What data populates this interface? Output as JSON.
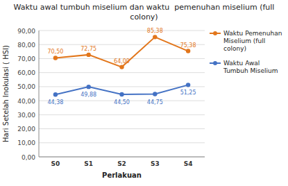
{
  "chart_data": {
    "type": "line",
    "title": "Waktu awal tumbuh miselium dan waktu  pemenuhan miselium (full colony)",
    "x_label": "Perlakuan",
    "y_label": "Hari Setelah Inokulasi ( HSI)",
    "categories": [
      "S0",
      "S1",
      "S2",
      "S3",
      "S4"
    ],
    "series": [
      {
        "name": "Waktu Pemenuhan\nMiselium (full\ncolony)",
        "color": "#E2761B",
        "marker": "circle",
        "values": [
          70.5,
          72.75,
          64.0,
          85.38,
          75.38
        ],
        "value_labels": [
          "70,50",
          "72,75",
          "64,00",
          "85,38",
          "75,38"
        ]
      },
      {
        "name": "Waktu Awal\nTumbuh Miselium",
        "color": "#4472C4",
        "marker": "circle",
        "values": [
          44.38,
          49.88,
          44.5,
          44.75,
          51.25
        ],
        "value_labels": [
          "44,38",
          "49,88",
          "44,50",
          "44,75",
          "51,25"
        ]
      }
    ],
    "ylim": [
      0,
      90
    ],
    "yticks": [
      {
        "value": 0,
        "label": "0,00"
      },
      {
        "value": 10,
        "label": "10,00"
      },
      {
        "value": 20,
        "label": "20,00"
      },
      {
        "value": 30,
        "label": "30,00"
      },
      {
        "value": 40,
        "label": "40,00"
      },
      {
        "value": 50,
        "label": "50,00"
      },
      {
        "value": 60,
        "label": "60,00"
      },
      {
        "value": 70,
        "label": "70,00"
      },
      {
        "value": 80,
        "label": "80,00"
      },
      {
        "value": 90,
        "label": "90,00"
      }
    ],
    "grid": true,
    "legend": "right",
    "data_labels": true
  }
}
